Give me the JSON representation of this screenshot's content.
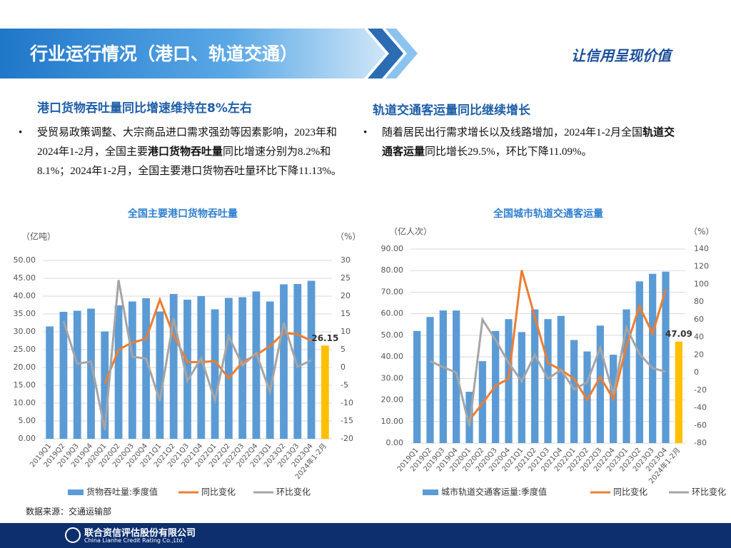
{
  "header": {
    "title": "行业运行情况（港口、轨道交通）",
    "slogan": "让信用呈现价值"
  },
  "sections": [
    {
      "heading": "港口货物吞吐量同比增速维持在8%左右",
      "bullet": [
        {
          "text": "受贸易政策调整、大宗商品进口需求强劲等因素影响，2023年和2024年1-2月，全国主要",
          "bold": false
        },
        {
          "text": "港口货物吞吐量",
          "bold": true
        },
        {
          "text": "同比增速分别为8.2%和8.1%；2024年1-2月，全国主要港口货物吞吐量环比下降11.13%。",
          "bold": false
        }
      ]
    },
    {
      "heading": "轨道交通客运量同比继续增长",
      "bullet": [
        {
          "text": "随着居民出行需求增长以及线路增加，2024年1-2月全国",
          "bold": false
        },
        {
          "text": "轨道交通客运量",
          "bold": true
        },
        {
          "text": "同比增长29.5%，环比下降11.09%。",
          "bold": false
        }
      ]
    }
  ],
  "chart_data": [
    {
      "type": "bar_line",
      "title": "全国主要港口货物吞吐量",
      "y_label": "（亿吨）",
      "y2_label": "（%）",
      "categories": [
        "2019Q1",
        "2019Q2",
        "2019Q3",
        "2019Q4",
        "2020Q1",
        "2020Q2",
        "2020Q3",
        "2020Q4",
        "2021Q1",
        "2021Q2",
        "2021Q3",
        "2021Q4",
        "2022Q1",
        "2022Q2",
        "2022Q3",
        "2022Q4",
        "2023Q1",
        "2023Q2",
        "2023Q3",
        "2023Q4",
        "2024年1-2月"
      ],
      "series": [
        {
          "name": "货物吞吐量:季度值",
          "kind": "bar",
          "color": "#5b9bd5",
          "colors": [
            "#5b9bd5",
            "#5b9bd5",
            "#5b9bd5",
            "#5b9bd5",
            "#5b9bd5",
            "#5b9bd5",
            "#5b9bd5",
            "#5b9bd5",
            "#5b9bd5",
            "#5b9bd5",
            "#5b9bd5",
            "#5b9bd5",
            "#5b9bd5",
            "#5b9bd5",
            "#5b9bd5",
            "#5b9bd5",
            "#5b9bd5",
            "#5b9bd5",
            "#5b9bd5",
            "#5b9bd5",
            "#ffc000"
          ],
          "values": [
            31.5,
            35.6,
            35.9,
            36.5,
            30.1,
            37.4,
            38.5,
            39.4,
            35.7,
            40.6,
            39.0,
            40.0,
            36.3,
            39.5,
            39.7,
            41.3,
            38.5,
            43.3,
            43.4,
            44.3,
            26.15
          ],
          "value_labels": [
            null,
            null,
            null,
            null,
            null,
            null,
            null,
            null,
            null,
            null,
            null,
            null,
            null,
            null,
            null,
            null,
            null,
            null,
            null,
            null,
            "26.15"
          ]
        },
        {
          "name": "同比变化",
          "kind": "line",
          "axis": "y2",
          "color": "#ed7d31",
          "values": [
            null,
            null,
            null,
            null,
            -4.5,
            5,
            7,
            8,
            19,
            9,
            1.5,
            1.5,
            1.8,
            -3,
            1.5,
            3.5,
            6,
            9.7,
            9.3,
            7.5,
            null
          ]
        },
        {
          "name": "环比变化",
          "kind": "line",
          "axis": "y2",
          "color": "#a5a5a5",
          "values": [
            null,
            13,
            1,
            1.7,
            -17.5,
            24.5,
            3,
            2.5,
            -9.4,
            13.7,
            -3.8,
            2.6,
            -9.2,
            8.8,
            0.6,
            4,
            -6.8,
            12.5,
            0.2,
            2,
            null
          ]
        }
      ],
      "ylim": [
        0,
        50
      ],
      "yticks": [
        {
          "value": 0,
          "label": "0.00"
        },
        {
          "value": 5,
          "label": "5.00"
        },
        {
          "value": 10,
          "label": "10.00"
        },
        {
          "value": 15,
          "label": "15.00"
        },
        {
          "value": 20,
          "label": "20.00"
        },
        {
          "value": 25,
          "label": "25.00"
        },
        {
          "value": 30,
          "label": "30.00"
        },
        {
          "value": 35,
          "label": "35.00"
        },
        {
          "value": 40,
          "label": "40.00"
        },
        {
          "value": 45,
          "label": "45.00"
        },
        {
          "value": 50,
          "label": "50.00"
        }
      ],
      "y2lim": [
        -20,
        30
      ],
      "y2ticks": [
        -20,
        -15,
        -10,
        -5,
        0,
        5,
        10,
        15,
        20,
        25,
        30
      ],
      "grid": true,
      "legend": "bottom"
    },
    {
      "type": "bar_line",
      "title": "全国城市轨道交通客运量",
      "y_label": "（亿人次）",
      "y2_label": "（%）",
      "categories": [
        "2019Q1",
        "2019Q2",
        "2019Q3",
        "2019Q4",
        "2020Q1",
        "2020Q2",
        "2020Q3",
        "2020Q4",
        "2021Q1",
        "2021Q2",
        "2021Q3",
        "2021Q4",
        "2022Q1",
        "2022Q2",
        "2022Q3",
        "2022Q4",
        "2023Q1",
        "2023Q2",
        "2023Q3",
        "2023Q4",
        "2024年1-2月"
      ],
      "series": [
        {
          "name": "城市轨道交通客运量:季度值",
          "kind": "bar",
          "color": "#5b9bd5",
          "colors": [
            "#5b9bd5",
            "#5b9bd5",
            "#5b9bd5",
            "#5b9bd5",
            "#5b9bd5",
            "#5b9bd5",
            "#5b9bd5",
            "#5b9bd5",
            "#5b9bd5",
            "#5b9bd5",
            "#5b9bd5",
            "#5b9bd5",
            "#5b9bd5",
            "#5b9bd5",
            "#5b9bd5",
            "#5b9bd5",
            "#5b9bd5",
            "#5b9bd5",
            "#5b9bd5",
            "#5b9bd5",
            "#ffc000"
          ],
          "values": [
            52,
            58.5,
            61.5,
            61.5,
            23.8,
            38,
            52,
            57.5,
            51.5,
            62,
            57.5,
            59,
            47.8,
            42.5,
            54.5,
            41,
            62,
            75,
            78.5,
            79.5,
            47.09
          ],
          "value_labels": [
            null,
            null,
            null,
            null,
            null,
            null,
            null,
            null,
            null,
            null,
            null,
            null,
            null,
            null,
            null,
            null,
            null,
            null,
            null,
            null,
            "47.09"
          ]
        },
        {
          "name": "同比变化",
          "kind": "line",
          "axis": "y2",
          "color": "#ed7d31",
          "values": [
            null,
            null,
            null,
            null,
            -54,
            -35,
            -15,
            -7,
            116,
            63,
            11,
            3,
            -7,
            -31,
            -5,
            -30,
            30,
            75,
            44,
            94,
            null
          ]
        },
        {
          "name": "环比变化",
          "kind": "line",
          "axis": "y2",
          "color": "#a5a5a5",
          "values": [
            null,
            13,
            6,
            0,
            -61,
            60,
            37,
            11,
            -10,
            20,
            -7,
            3,
            -19,
            -11,
            28,
            -25,
            51,
            21,
            5,
            1,
            null
          ]
        }
      ],
      "ylim": [
        0,
        90
      ],
      "yticks": [
        {
          "value": 0,
          "label": "0.00"
        },
        {
          "value": 10,
          "label": "10.00"
        },
        {
          "value": 20,
          "label": "20.00"
        },
        {
          "value": 30,
          "label": "30.00"
        },
        {
          "value": 40,
          "label": "40.00"
        },
        {
          "value": 50,
          "label": "50.00"
        },
        {
          "value": 60,
          "label": "60.00"
        },
        {
          "value": 70,
          "label": "70.00"
        },
        {
          "value": 80,
          "label": "80.00"
        },
        {
          "value": 90,
          "label": "90.00"
        }
      ],
      "y2lim": [
        -80,
        140
      ],
      "y2ticks": [
        -80,
        -60,
        -40,
        -20,
        0,
        20,
        40,
        60,
        80,
        100,
        120,
        140
      ],
      "grid": true,
      "legend": "bottom"
    }
  ],
  "source": "数据来源：交通运输部",
  "footer": {
    "company": "联合资信评估股份有限公司",
    "company_en": "China Lianhe Credit Rating Co.,Ltd."
  }
}
